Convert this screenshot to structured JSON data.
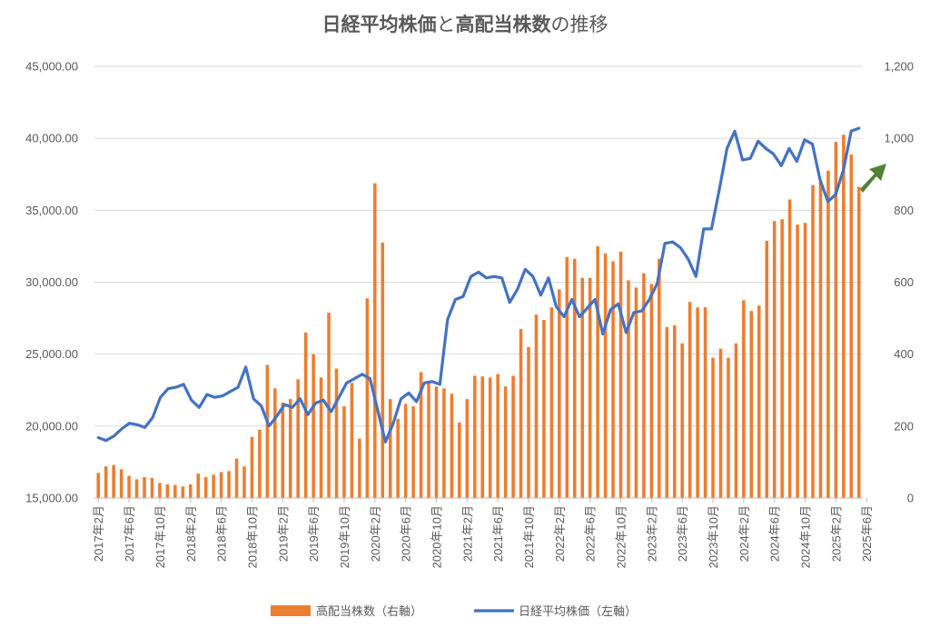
{
  "chart_data": {
    "type": "bar",
    "title": {
      "parts": [
        {
          "text": "日経平均株価",
          "bold": true
        },
        {
          "text": "と",
          "bold": false
        },
        {
          "text": "高配当株数",
          "bold": true
        },
        {
          "text": "の推移",
          "bold": false
        }
      ]
    },
    "left_axis": {
      "min": 15000,
      "max": 45000,
      "step": 5000,
      "ticks": [
        "15,000.00",
        "20,000.00",
        "25,000.00",
        "30,000.00",
        "35,000.00",
        "40,000.00",
        "45,000.00"
      ]
    },
    "right_axis": {
      "min": 0,
      "max": 1200,
      "step": 200,
      "ticks": [
        "0",
        "200",
        "400",
        "600",
        "800",
        "1,000",
        "1,200"
      ]
    },
    "x_labels": [
      "2017年2月",
      "2017年6月",
      "2017年10月",
      "2018年2月",
      "2018年6月",
      "2018年10月",
      "2019年2月",
      "2019年6月",
      "2019年10月",
      "2020年2月",
      "2020年6月",
      "2020年10月",
      "2021年2月",
      "2021年6月",
      "2021年10月",
      "2022年2月",
      "2022年6月",
      "2022年10月",
      "2023年2月",
      "2023年6月",
      "2023年10月",
      "2024年2月",
      "2024年6月",
      "2024年10月",
      "2025年2月",
      "2025年6月"
    ],
    "grid": true,
    "legend_position": "bottom",
    "series": [
      {
        "name": "高配当株数（右軸）",
        "type": "bar",
        "axis": "right",
        "color": "#ED7D31",
        "values": [
          70,
          88,
          92,
          80,
          62,
          52,
          58,
          56,
          42,
          38,
          36,
          32,
          38,
          68,
          58,
          65,
          72,
          75,
          110,
          88,
          170,
          190,
          370,
          305,
          265,
          275,
          330,
          460,
          400,
          335,
          515,
          360,
          255,
          320,
          165,
          555,
          875,
          710,
          275,
          220,
          262,
          255,
          350,
          325,
          310,
          305,
          290,
          210,
          275,
          340,
          338,
          335,
          345,
          310,
          340,
          470,
          420,
          510,
          495,
          530,
          580,
          670,
          665,
          612,
          612,
          700,
          680,
          658,
          685,
          605,
          585,
          625,
          595,
          665,
          475,
          480,
          430,
          545,
          530,
          530,
          390,
          415,
          390,
          430,
          550,
          520,
          535,
          715,
          770,
          775,
          830,
          760,
          765,
          870,
          880,
          910,
          990,
          1010,
          955,
          865
        ]
      },
      {
        "name": "日経平均株価（左軸）",
        "type": "line",
        "axis": "left",
        "color": "#4472C4",
        "values": [
          19200,
          19000,
          19300,
          19800,
          20200,
          20100,
          19900,
          20600,
          22000,
          22600,
          22700,
          22900,
          21800,
          21300,
          22200,
          22000,
          22100,
          22400,
          22700,
          24100,
          21900,
          21400,
          20000,
          20700,
          21500,
          21300,
          21900,
          20800,
          21600,
          21800,
          21000,
          22000,
          23000,
          23300,
          23600,
          23300,
          21100,
          18900,
          20200,
          21900,
          22300,
          21700,
          23000,
          23100,
          22900,
          27400,
          28800,
          29000,
          30400,
          30700,
          30300,
          30400,
          30300,
          28600,
          29500,
          30900,
          30400,
          29100,
          30300,
          28300,
          27600,
          28800,
          27600,
          28200,
          28800,
          26400,
          28100,
          28500,
          26500,
          27900,
          28000,
          28800,
          29900,
          32700,
          32800,
          32400,
          31600,
          30400,
          33700,
          33700,
          36400,
          39300,
          40500,
          38500,
          38600,
          39800,
          39300,
          38900,
          38100,
          39300,
          38400,
          39900,
          39600,
          37100,
          35600,
          36100,
          37800,
          40500,
          40700
        ]
      }
    ],
    "legend": [
      "高配当株数（右軸）",
      "日経平均株価（左軸）"
    ],
    "annotation": {
      "type": "arrow",
      "color": "#548235",
      "points_to": "latest bar"
    }
  }
}
